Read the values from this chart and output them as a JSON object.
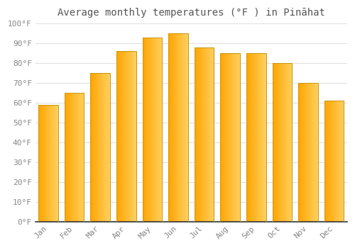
{
  "months": [
    "Jan",
    "Feb",
    "Mar",
    "Apr",
    "May",
    "Jun",
    "Jul",
    "Aug",
    "Sep",
    "Oct",
    "Nov",
    "Dec"
  ],
  "values": [
    59,
    65,
    75,
    86,
    93,
    95,
    88,
    85,
    85,
    80,
    70,
    61
  ],
  "bar_color_left": "#FFA500",
  "bar_color_right": "#FFD060",
  "bar_edge_color": "#C8960A",
  "title": "Average monthly temperatures (°F ) in Pināhat",
  "ylim": [
    0,
    100
  ],
  "ytick_step": 10,
  "background_color": "#ffffff",
  "grid_color": "#e0e0e0",
  "title_fontsize": 10,
  "tick_fontsize": 8,
  "tick_color": "#888888",
  "axis_color": "#333333"
}
